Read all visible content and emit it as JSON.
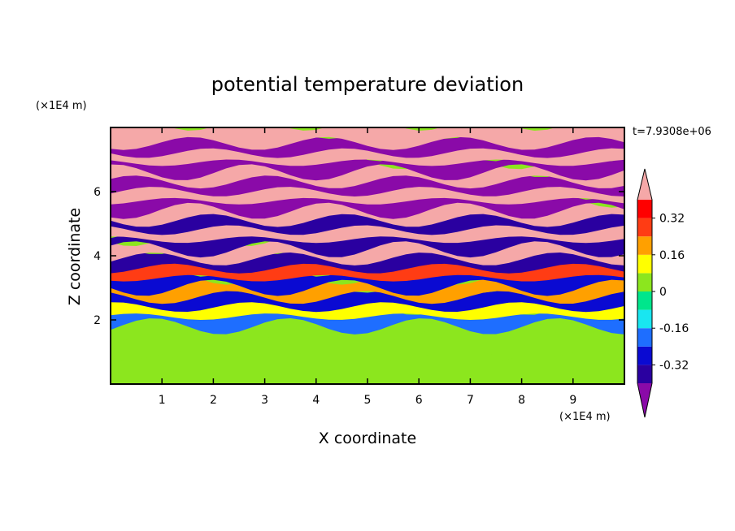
{
  "chart_data": {
    "type": "heatmap",
    "title": "potential temperature deviation",
    "time_label": "t=7.9308e+06",
    "xlabel": "X coordinate",
    "ylabel": "Z coordinate",
    "x_unit": "(×1E4 m)",
    "y_unit": "(×1E4 m)",
    "xlim": [
      0,
      10
    ],
    "ylim": [
      0,
      8
    ],
    "x_ticks": [
      1,
      2,
      3,
      4,
      5,
      6,
      7,
      8,
      9
    ],
    "y_ticks": [
      2,
      4,
      6
    ],
    "colorbar": {
      "levels": [
        -0.4,
        -0.32,
        -0.24,
        -0.16,
        -0.08,
        0,
        0.08,
        0.16,
        0.24,
        0.32,
        0.4
      ],
      "colors": [
        "#8a0aa8",
        "#2a00a0",
        "#0a0ad2",
        "#1e6eff",
        "#19e6f0",
        "#00e68c",
        "#8ce61e",
        "#ffff00",
        "#ffa000",
        "#ff3c14",
        "#ff0000",
        "#f5a8a8"
      ],
      "tick_labels": [
        "0.32",
        "0.16",
        "0",
        "-0.16",
        "-0.32"
      ],
      "tick_values": [
        0.32,
        0.16,
        0,
        -0.16,
        -0.32
      ],
      "extend": "both"
    },
    "bands": [
      {
        "z": 7.8,
        "value": 0.45
      },
      {
        "z": 7.5,
        "value": -0.45
      },
      {
        "z": 7.2,
        "value": 0.45
      },
      {
        "z": 6.9,
        "value": -0.45
      },
      {
        "z": 6.6,
        "value": 0.45
      },
      {
        "z": 6.3,
        "value": -0.45
      },
      {
        "z": 6.0,
        "value": 0.45
      },
      {
        "z": 5.7,
        "value": -0.45
      },
      {
        "z": 5.4,
        "value": 0.45
      },
      {
        "z": 5.1,
        "value": -0.4
      },
      {
        "z": 4.8,
        "value": 0.45
      },
      {
        "z": 4.5,
        "value": -0.38
      },
      {
        "z": 4.2,
        "value": 0.4
      },
      {
        "z": 3.9,
        "value": -0.36
      },
      {
        "z": 3.6,
        "value": 0.3
      },
      {
        "z": 3.3,
        "value": -0.32
      },
      {
        "z": 3.0,
        "value": 0.2
      },
      {
        "z": 2.7,
        "value": -0.3
      },
      {
        "z": 2.4,
        "value": 0.15
      },
      {
        "z": 2.1,
        "value": -0.2
      },
      {
        "z": 1.8,
        "value": 0.02
      },
      {
        "z": 1.2,
        "value": 0.05
      },
      {
        "z": 0.5,
        "value": 0.06
      }
    ]
  }
}
